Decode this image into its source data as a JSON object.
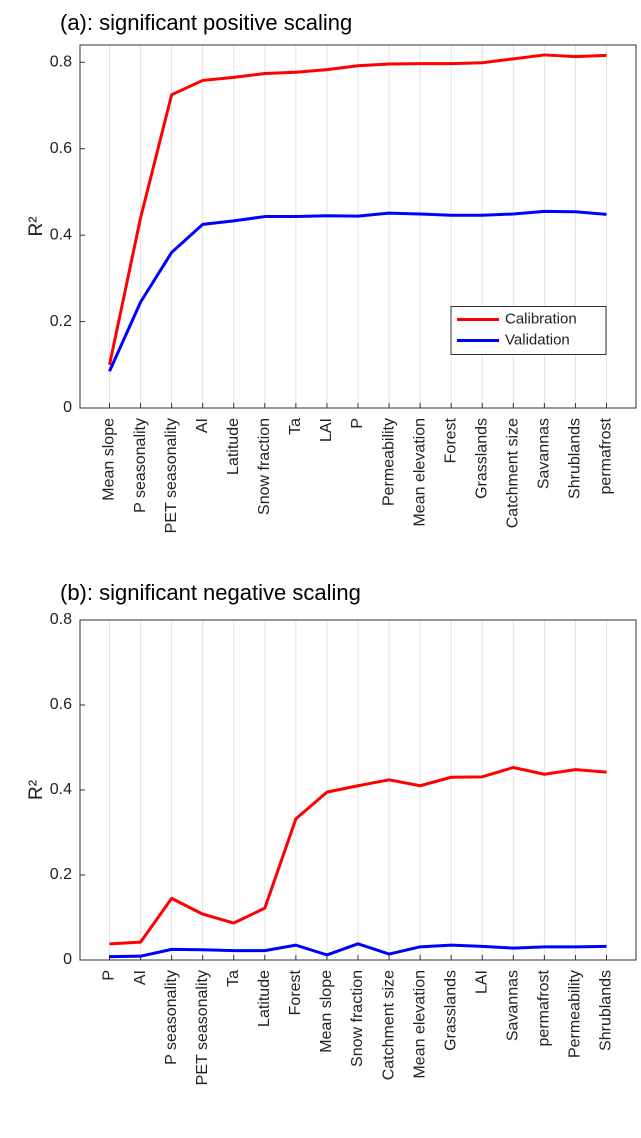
{
  "chart_data": [
    {
      "type": "line",
      "title": "(a): significant positive scaling",
      "y_label": "R²",
      "categories": [
        "Mean slope",
        "P seasonality",
        "PET seasonality",
        "AI",
        "Latitude",
        "Snow fraction",
        "Ta",
        "LAI",
        "P",
        "Permeability",
        "Mean elevation",
        "Forest",
        "Grasslands",
        "Catchment size",
        "Savannas",
        "Shrublands",
        "permafrost"
      ],
      "series": [
        {
          "name": "Calibration",
          "color": "#ff0000",
          "values": [
            0.1,
            0.44,
            0.725,
            0.758,
            0.765,
            0.774,
            0.777,
            0.783,
            0.792,
            0.796,
            0.797,
            0.797,
            0.799,
            0.808,
            0.817,
            0.813,
            0.816
          ]
        },
        {
          "name": "Validation",
          "color": "#0000ff",
          "values": [
            0.085,
            0.245,
            0.36,
            0.425,
            0.433,
            0.443,
            0.443,
            0.445,
            0.444,
            0.451,
            0.449,
            0.446,
            0.446,
            0.449,
            0.455,
            0.454,
            0.448
          ]
        }
      ],
      "ylim": [
        0,
        0.84
      ],
      "yticks": [
        0,
        0.2,
        0.4,
        0.6,
        0.8
      ],
      "grid": "x",
      "legend": "east"
    },
    {
      "type": "line",
      "title": "(b): significant negative scaling",
      "y_label": "R²",
      "categories": [
        "P",
        "AI",
        "P seasonality",
        "PET seasonality",
        "Ta",
        "Latitude",
        "Forest",
        "Mean slope",
        "Snow fraction",
        "Catchment size",
        "Mean elevation",
        "Grasslands",
        "LAI",
        "Savannas",
        "permafrost",
        "Permeability",
        "Shrublands"
      ],
      "series": [
        {
          "name": "Calibration",
          "color": "#ff0000",
          "values": [
            0.038,
            0.042,
            0.145,
            0.108,
            0.087,
            0.122,
            0.332,
            0.395,
            0.41,
            0.424,
            0.41,
            0.43,
            0.431,
            0.453,
            0.437,
            0.448,
            0.442
          ]
        },
        {
          "name": "Validation",
          "color": "#0000ff",
          "values": [
            0.008,
            0.009,
            0.025,
            0.024,
            0.022,
            0.022,
            0.035,
            0.012,
            0.038,
            0.014,
            0.031,
            0.035,
            0.032,
            0.028,
            0.031,
            0.031,
            0.032
          ]
        }
      ],
      "ylim": [
        0,
        0.8
      ],
      "yticks": [
        0,
        0.2,
        0.4,
        0.6,
        0.8
      ],
      "grid": "x",
      "legend": false
    }
  ]
}
